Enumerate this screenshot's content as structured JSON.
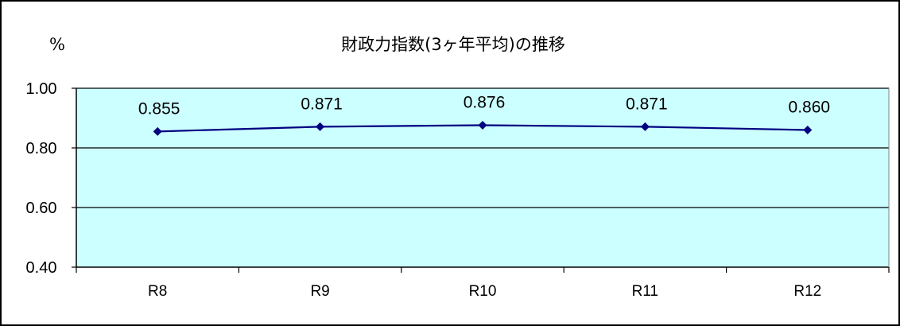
{
  "unit_label": "%",
  "chart_data": {
    "type": "line",
    "title": "財政力指数(3ヶ年平均)の推移",
    "categories": [
      "R8",
      "R9",
      "R10",
      "R11",
      "R12"
    ],
    "values": [
      0.855,
      0.871,
      0.876,
      0.871,
      0.86
    ],
    "data_labels": [
      "0.855",
      "0.871",
      "0.876",
      "0.871",
      "0.860"
    ],
    "ylim": [
      0.4,
      1.0
    ],
    "yticks": [
      1.0,
      0.8,
      0.6,
      0.4
    ],
    "ytick_labels": [
      "1.00",
      "0.80",
      "0.60",
      "0.40"
    ],
    "grid": true,
    "legend": "none",
    "colors": {
      "plot_background": "#ccffff",
      "line": "#000080",
      "marker": "#000080",
      "gridline": "#000000"
    }
  }
}
